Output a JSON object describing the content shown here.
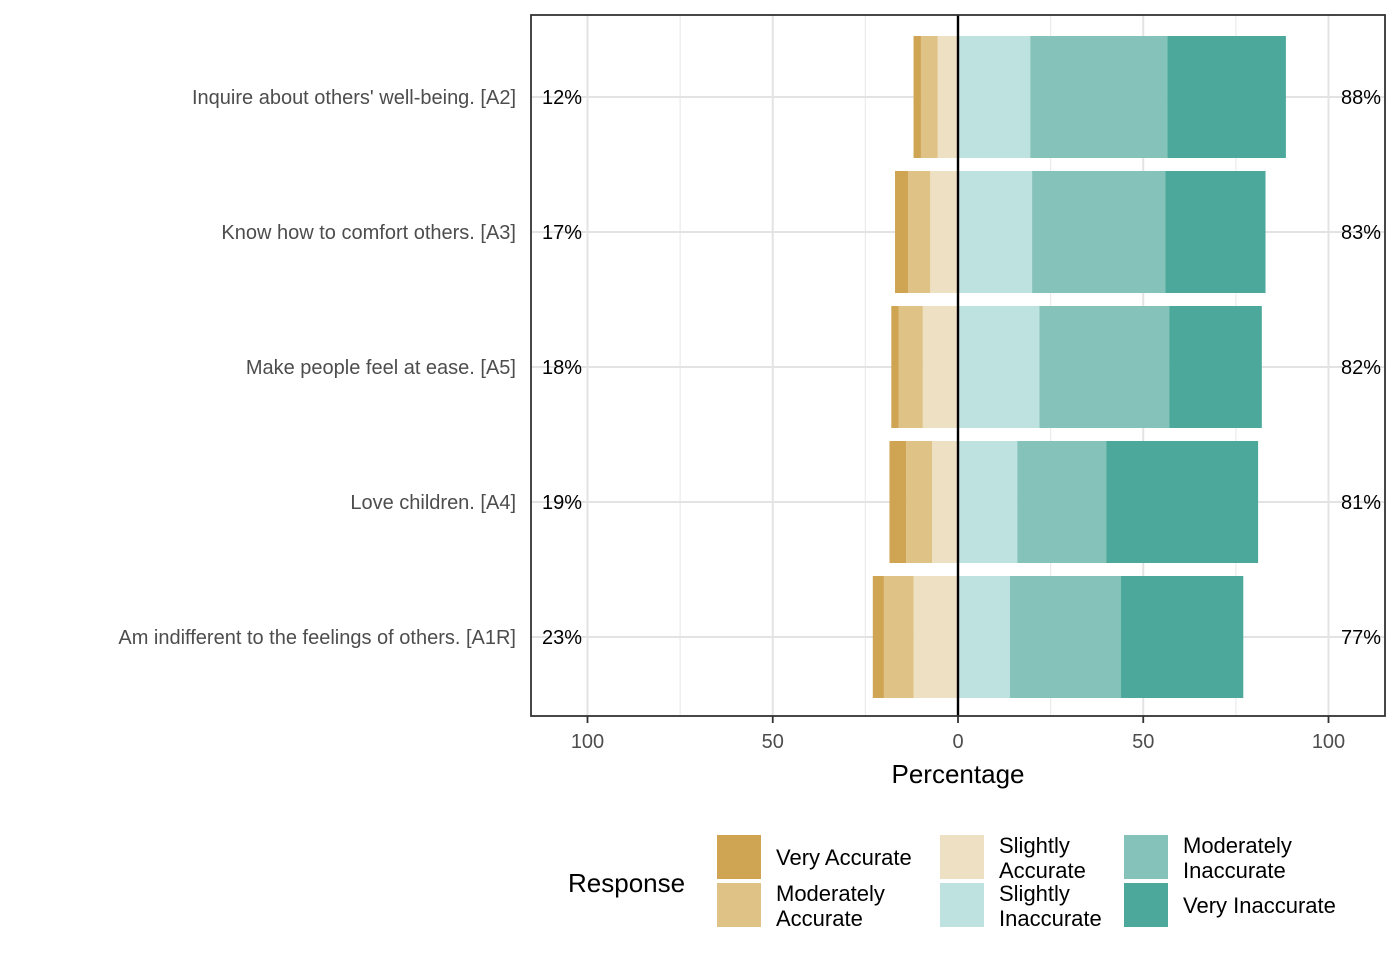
{
  "chart_data": {
    "type": "bar",
    "orientation": "horizontal",
    "stacking": "diverging",
    "xlabel": "Percentage",
    "xlim": [
      -100,
      100
    ],
    "xticks": [
      -100,
      -50,
      0,
      50,
      100
    ],
    "xtick_labels": [
      "100",
      "50",
      "0",
      "50",
      "100"
    ],
    "grid": true,
    "legend": {
      "title": "Response",
      "position": "bottom",
      "entries": [
        "Very Accurate",
        "Moderately Accurate",
        "Slightly Accurate",
        "Slightly Inaccurate",
        "Moderately Inaccurate",
        "Very Inaccurate"
      ]
    },
    "categories": [
      "Inquire about others' well-being. [A2]",
      "Know how to comfort others. [A3]",
      "Make people feel at ease. [A5]",
      "Love children. [A4]",
      "Am indifferent to the feelings of others. [A1R]"
    ],
    "series": [
      {
        "name": "Very Accurate",
        "side": "left",
        "color": "#cfa554",
        "values": [
          2,
          3.5,
          2,
          4.5,
          3
        ]
      },
      {
        "name": "Moderately Accurate",
        "side": "left",
        "color": "#dfc386",
        "values": [
          4.5,
          6,
          6.5,
          7,
          8
        ]
      },
      {
        "name": "Slightly Accurate",
        "side": "left",
        "color": "#eee0c3",
        "values": [
          5.5,
          7.5,
          9.5,
          7,
          12
        ]
      },
      {
        "name": "Slightly Inaccurate",
        "side": "right",
        "color": "#bde2df",
        "values": [
          19.5,
          20,
          22,
          16,
          14
        ]
      },
      {
        "name": "Moderately Inaccurate",
        "side": "right",
        "color": "#85c3ba",
        "values": [
          37,
          36,
          35,
          24,
          30
        ]
      },
      {
        "name": "Very Inaccurate",
        "side": "right",
        "color": "#4ba89a",
        "values": [
          32,
          27,
          25,
          41,
          33
        ]
      }
    ],
    "left_labels": [
      "12%",
      "17%",
      "18%",
      "19%",
      "23%"
    ],
    "right_labels": [
      "88%",
      "83%",
      "82%",
      "81%",
      "77%"
    ]
  }
}
